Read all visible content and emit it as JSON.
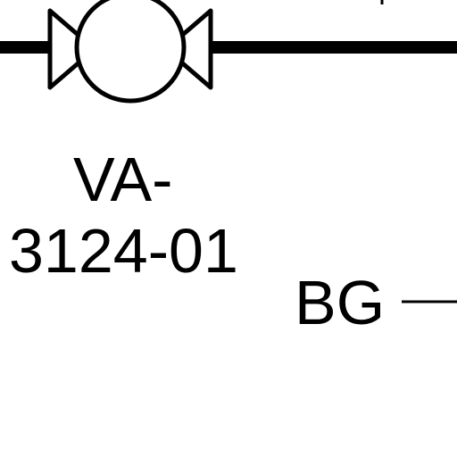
{
  "diagram": {
    "valve": {
      "tag_prefix": "VA-",
      "tag_number": "3124-01"
    },
    "signal": {
      "label": "BG"
    },
    "colors": {
      "background": "#ffffff",
      "line": "#000000"
    }
  }
}
